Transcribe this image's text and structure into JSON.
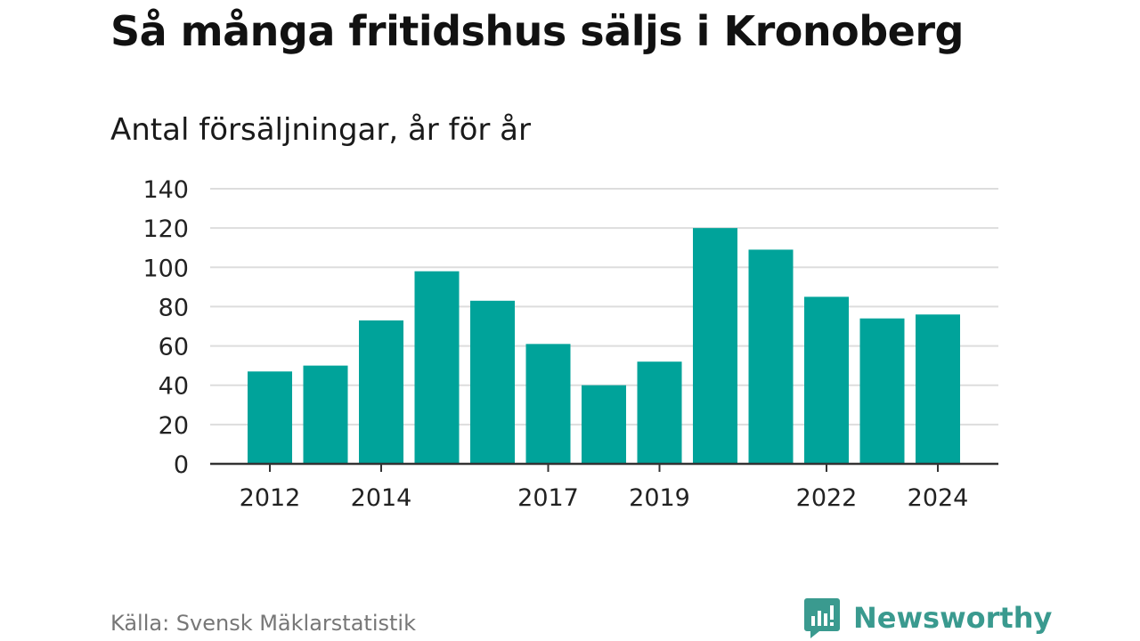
{
  "chart_data": {
    "type": "bar",
    "title": "Så många fritidshus säljs i Kronoberg",
    "subtitle": "Antal försäljningar, år för år",
    "categories": [
      "2012",
      "2013",
      "2014",
      "2015",
      "2016",
      "2017",
      "2018",
      "2019",
      "2020",
      "2021",
      "2022",
      "2023",
      "2024"
    ],
    "x_tick_labels": [
      "2012",
      "",
      "2014",
      "",
      "",
      "2017",
      "",
      "2019",
      "",
      "",
      "2022",
      "",
      "2024"
    ],
    "values": [
      47,
      50,
      73,
      98,
      83,
      61,
      40,
      52,
      120,
      109,
      85,
      74,
      76
    ],
    "ylim": [
      0,
      140
    ],
    "yticks": [
      0,
      20,
      40,
      60,
      80,
      100,
      120,
      140
    ],
    "grid": true,
    "bar_color": "#00a39a",
    "grid_color": "#dddddd",
    "axis_color": "#333333"
  },
  "footer": {
    "source": "Källa: Svensk Mäklarstatistik",
    "brand": "Newsworthy",
    "brand_color": "#3a9a8f"
  }
}
